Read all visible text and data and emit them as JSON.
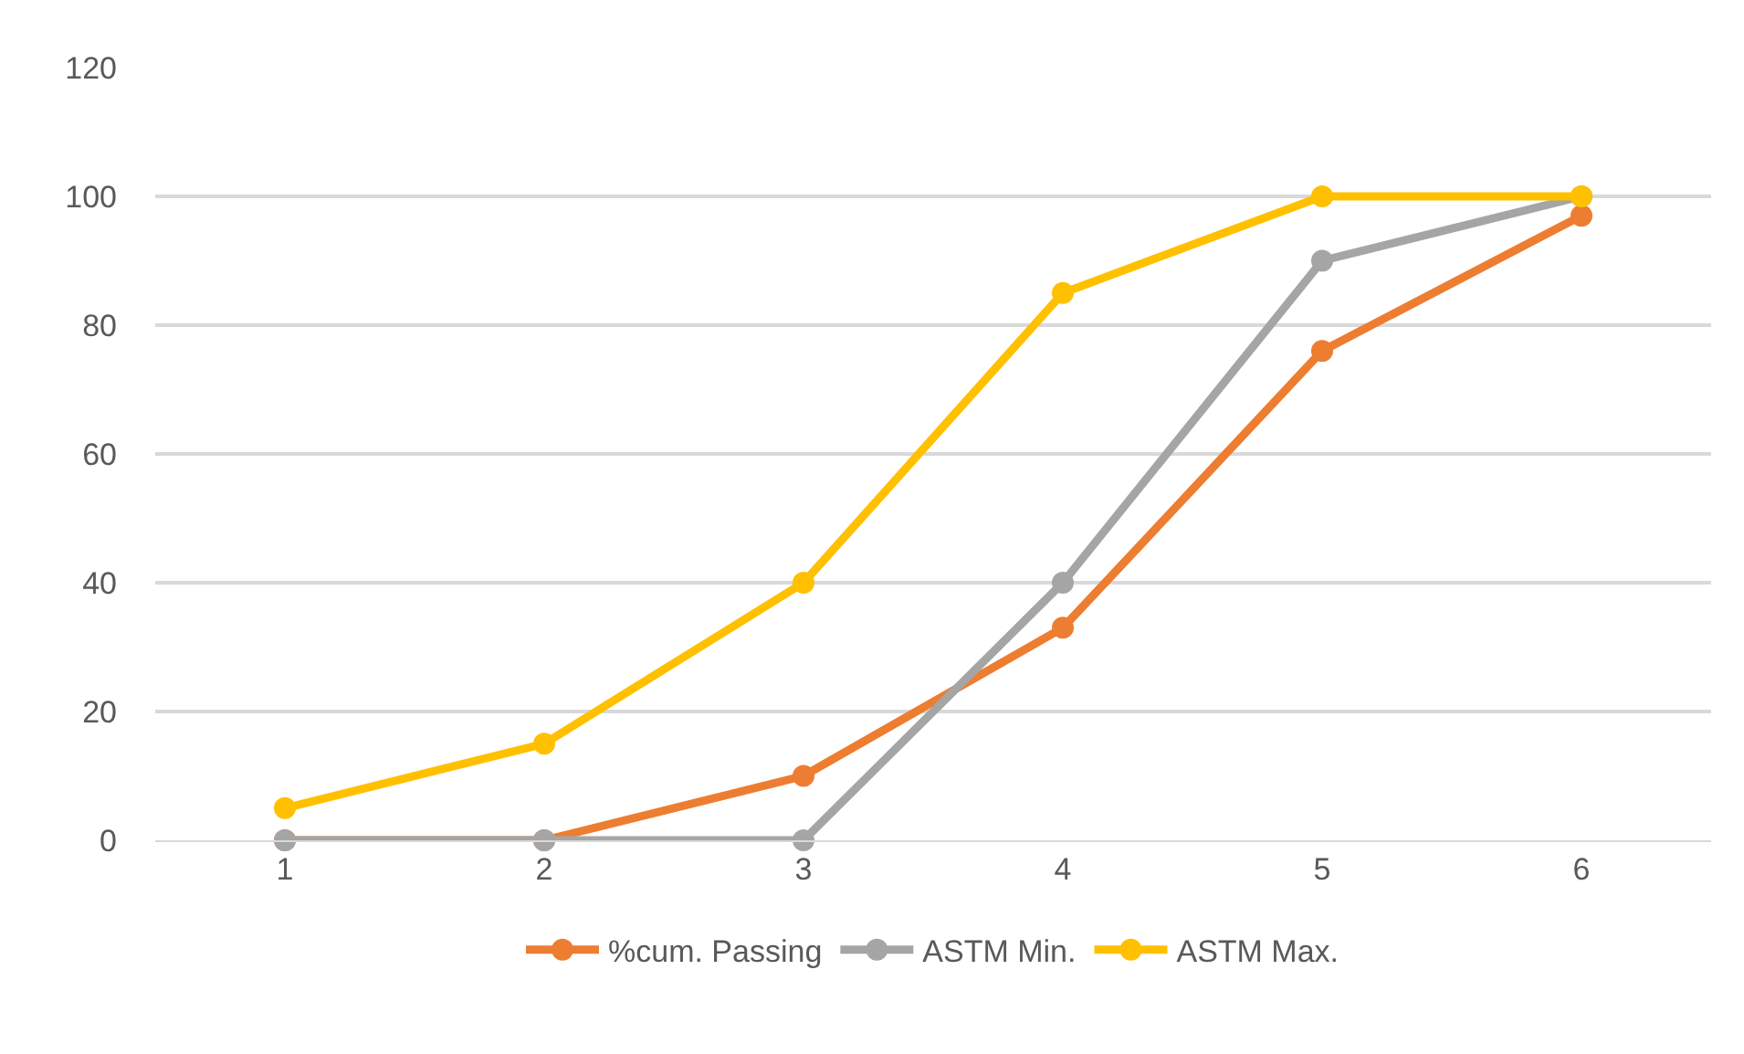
{
  "chart_data": {
    "type": "line",
    "categories": [
      "1",
      "2",
      "3",
      "4",
      "5",
      "6"
    ],
    "series": [
      {
        "name": "%cum. Passing",
        "color": "#ed7d31",
        "values": [
          0,
          0,
          10,
          33,
          76,
          97
        ]
      },
      {
        "name": "ASTM Min.",
        "color": "#a5a5a5",
        "values": [
          0,
          0,
          0,
          40,
          90,
          100
        ]
      },
      {
        "name": "ASTM Max.",
        "color": "#ffc000",
        "values": [
          5,
          15,
          40,
          85,
          100,
          100
        ]
      }
    ],
    "ylim": [
      0,
      120
    ],
    "yticks": [
      0,
      20,
      40,
      60,
      80,
      100,
      120
    ],
    "grid": "y",
    "legend": "bottom",
    "marker": "circle",
    "line_style": "solid"
  }
}
